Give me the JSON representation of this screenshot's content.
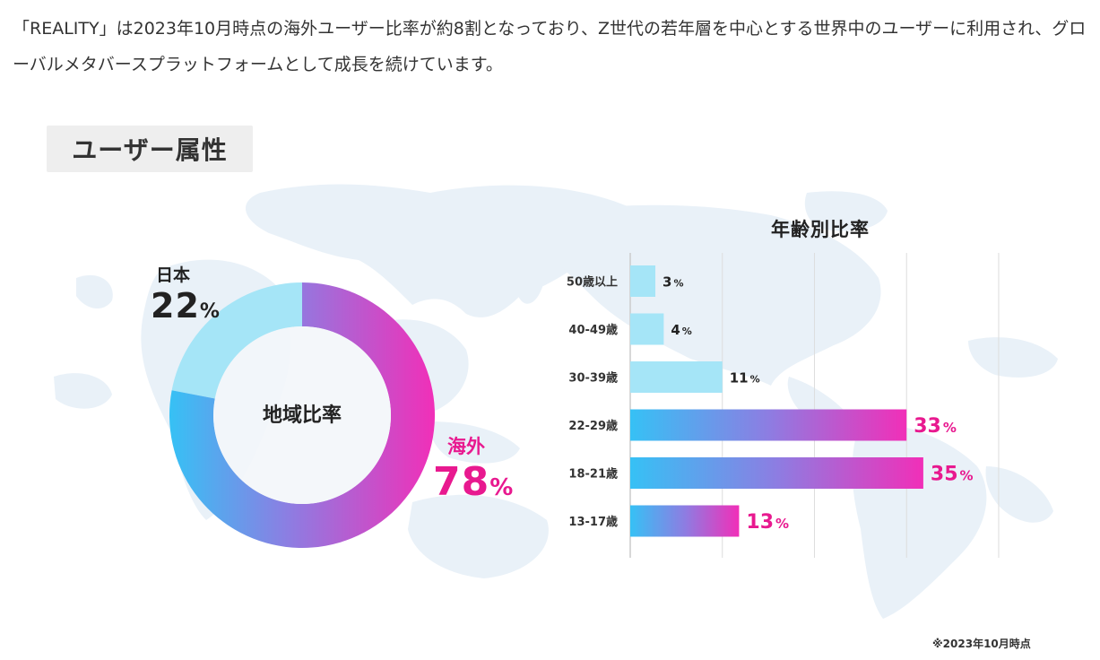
{
  "intro_text": "「REALITY」は2023年10月時点の海外ユーザー比率が約8割となっており、Z世代の若年層を中心とする世界中のユーザーに利用され、グローバルメタバースプラットフォームとして成長を続けています。",
  "badge_title": "ユーザー属性",
  "colors": {
    "japan": "#a5e5f7",
    "overseas_start": "#36c1f5",
    "overseas_end": "#f12fb8",
    "pink_text": "#e8198f",
    "dark_text": "#222222",
    "map": "#e9f1f8",
    "grid": "#dddddd"
  },
  "footnote": "※2023年10月時点",
  "chart_data": [
    {
      "type": "pie",
      "title": "地域比率",
      "slices": [
        {
          "name": "日本",
          "value": 22,
          "unit": "%"
        },
        {
          "name": "海外",
          "value": 78,
          "unit": "%"
        }
      ]
    },
    {
      "type": "bar",
      "orientation": "horizontal",
      "title": "年齢別比率",
      "categories": [
        "50歳以上",
        "40-49歳",
        "30-39歳",
        "22-29歳",
        "18-21歳",
        "13-17歳"
      ],
      "values": [
        3,
        4,
        11,
        33,
        35,
        13
      ],
      "unit": "%",
      "highlighted": [
        false,
        false,
        false,
        true,
        true,
        true
      ],
      "xlim": [
        0,
        40
      ],
      "grid": true
    }
  ]
}
